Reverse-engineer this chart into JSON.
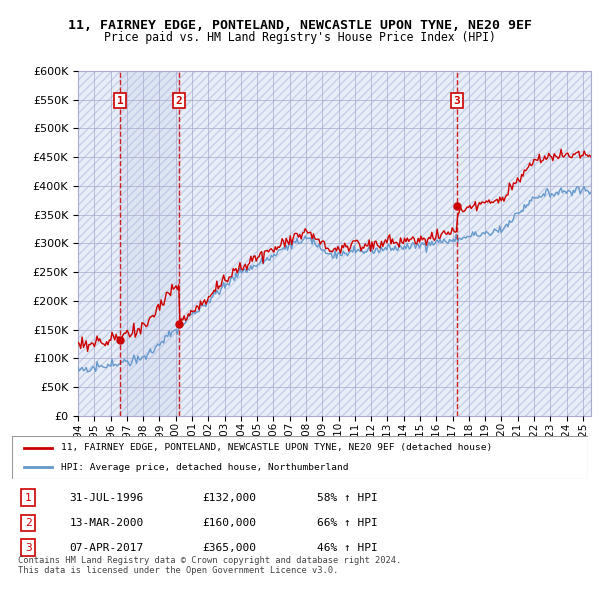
{
  "title": "11, FAIRNEY EDGE, PONTELAND, NEWCASTLE UPON TYNE, NE20 9EF",
  "subtitle": "Price paid vs. HM Land Registry's House Price Index (HPI)",
  "ylim": [
    0,
    600000
  ],
  "yticks": [
    0,
    50000,
    100000,
    150000,
    200000,
    250000,
    300000,
    350000,
    400000,
    450000,
    500000,
    550000,
    600000
  ],
  "xlim_start": 1994.0,
  "xlim_end": 2025.5,
  "bg_color": "#e8eef8",
  "hatch_color": "#c8d0e8",
  "grid_color": "#aaaacc",
  "line_color_hpi": "#6699cc",
  "line_color_paid": "#cc0000",
  "transactions": [
    {
      "label": "1",
      "year": 1996.58,
      "price": 132000,
      "date": "31-JUL-1996",
      "pct": "58%"
    },
    {
      "label": "2",
      "year": 2000.2,
      "price": 160000,
      "date": "13-MAR-2000",
      "pct": "66%"
    },
    {
      "label": "3",
      "year": 2017.27,
      "price": 365000,
      "date": "07-APR-2017",
      "pct": "46%"
    }
  ],
  "legend_line1": "11, FAIRNEY EDGE, PONTELAND, NEWCASTLE UPON TYNE, NE20 9EF (detached house)",
  "legend_line2": "HPI: Average price, detached house, Northumberland",
  "footnote1": "Contains HM Land Registry data © Crown copyright and database right 2024.",
  "footnote2": "This data is licensed under the Open Government Licence v3.0.",
  "table_rows": [
    [
      "1",
      "31-JUL-1996",
      "£132,000",
      "58% ↑ HPI"
    ],
    [
      "2",
      "13-MAR-2000",
      "£160,000",
      "66% ↑ HPI"
    ],
    [
      "3",
      "07-APR-2017",
      "£365,000",
      "46% ↑ HPI"
    ]
  ]
}
